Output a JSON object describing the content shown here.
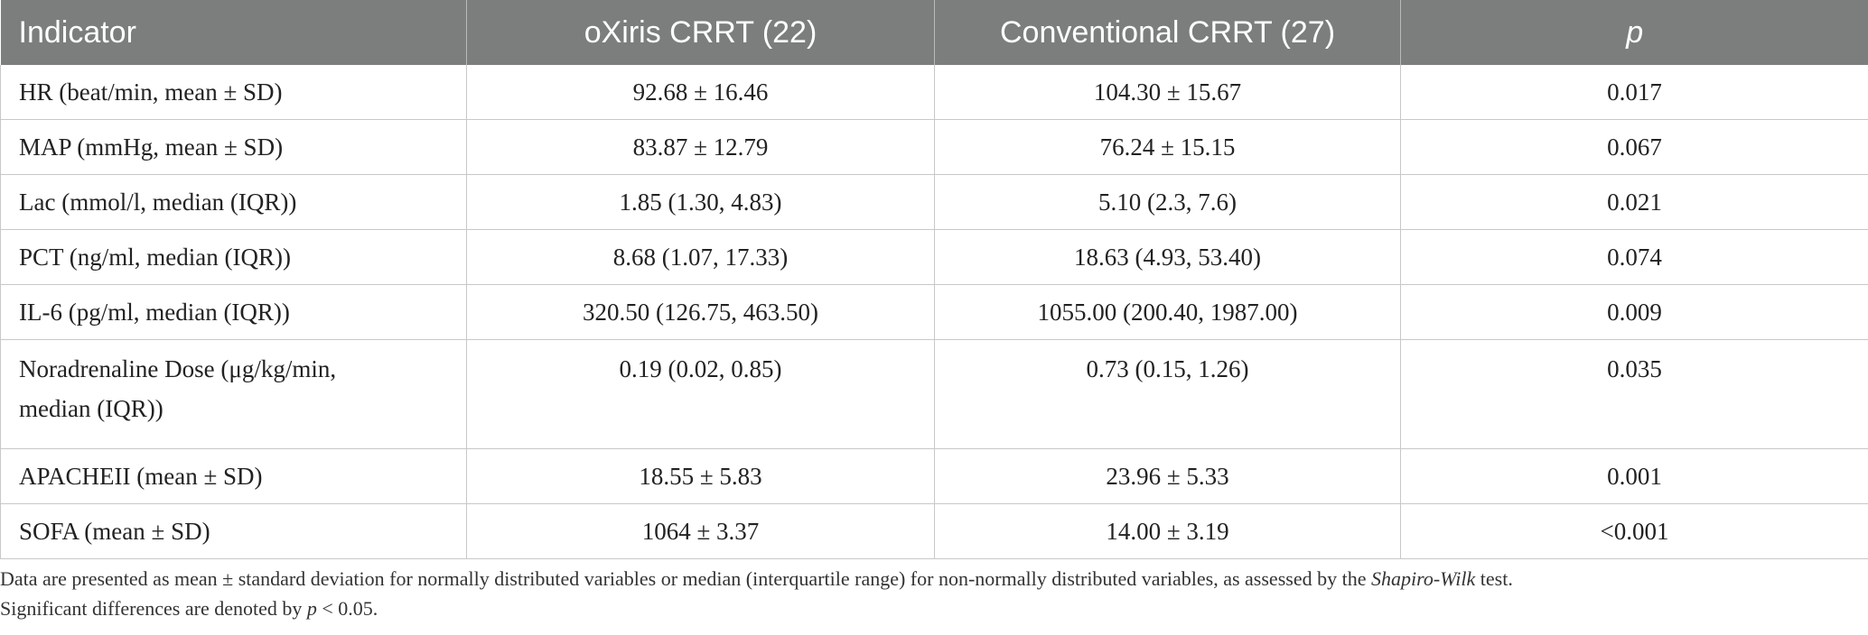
{
  "table": {
    "headers": [
      {
        "text": "Indicator",
        "italic": false
      },
      {
        "text": "oXiris CRRT (22)",
        "italic": false
      },
      {
        "text": "Conventional CRRT (27)",
        "italic": false
      },
      {
        "text": "p",
        "italic": true
      }
    ],
    "rows": [
      [
        "HR (beat/min, mean ± SD)",
        "92.68 ± 16.46",
        "104.30 ± 15.67",
        "0.017"
      ],
      [
        "MAP (mmHg, mean ± SD)",
        "83.87 ± 12.79",
        "76.24 ± 15.15",
        "0.067"
      ],
      [
        "Lac (mmol/l, median (IQR))",
        "1.85 (1.30, 4.83)",
        "5.10 (2.3, 7.6)",
        "0.021"
      ],
      [
        "PCT (ng/ml, median (IQR))",
        "8.68 (1.07, 17.33)",
        "18.63 (4.93, 53.40)",
        "0.074"
      ],
      [
        "IL-6 (pg/ml, median (IQR))",
        "320.50 (126.75, 463.50)",
        "1055.00 (200.40, 1987.00)",
        "0.009"
      ],
      [
        "Noradrenaline Dose (μg/kg/min,",
        "0.19 (0.02, 0.85)",
        "0.73 (0.15, 1.26)",
        "0.035"
      ],
      [
        "APACHEII (mean ± SD)",
        "18.55 ± 5.83",
        "23.96 ± 5.33",
        "0.001"
      ],
      [
        "SOFA (mean ± SD)",
        "1064 ± 3.37",
        "14.00 ± 3.19",
        "<0.001"
      ]
    ],
    "row6_line2": "median (IQR))"
  },
  "footnote": {
    "line1_a": "Data are presented as mean ± standard deviation for normally distributed variables or median (interquartile range) for non-normally distributed variables, as assessed by the ",
    "line1_it": "Shapiro-Wilk",
    "line1_b": " test.",
    "line2_a": "Significant differences are denoted by ",
    "line2_it": "p",
    "line2_b": " < 0.05."
  }
}
